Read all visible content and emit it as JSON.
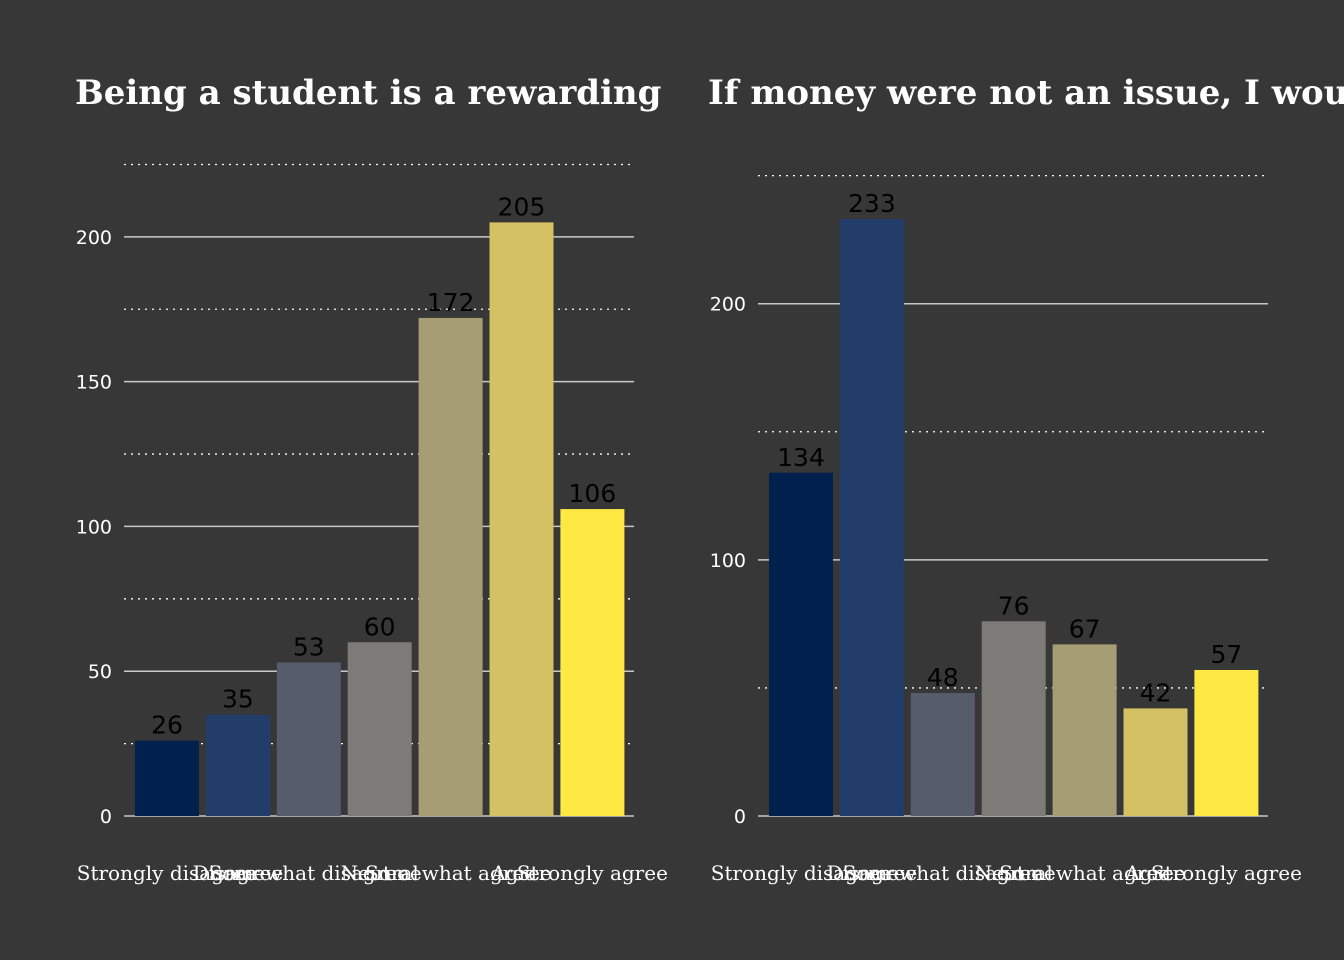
{
  "chart_data": [
    {
      "type": "bar",
      "title": "Being a student is a rewarding",
      "categories": [
        "Strongly disagree",
        "Disagree",
        "Somewhat disagree",
        "Neutral",
        "Somewhat agree",
        "Agree",
        "Strongly agree"
      ],
      "values": [
        26,
        35,
        53,
        60,
        172,
        205,
        106
      ],
      "colors": [
        "#00204d",
        "#233d6b",
        "#575c6d",
        "#7c7b78",
        "#a69d75",
        "#d3c164",
        "#fee944"
      ],
      "yticks": [
        "0",
        "50",
        "100",
        "150",
        "200"
      ],
      "ylim": [
        0,
        230
      ],
      "xlabel": "",
      "ylabel": "",
      "grid": true
    },
    {
      "type": "bar",
      "title": "If money were not an issue, I wou",
      "categories": [
        "Strongly disagree",
        "Disagree",
        "Somewhat disagree",
        "Neutral",
        "Somewhat agree",
        "Agree",
        "Strongly agree"
      ],
      "values": [
        134,
        233,
        48,
        76,
        67,
        42,
        57
      ],
      "colors": [
        "#00204d",
        "#233d6b",
        "#575c6d",
        "#7c7b78",
        "#a69d75",
        "#d3c164",
        "#fee944"
      ],
      "yticks": [
        "0",
        "100",
        "200"
      ],
      "ylim": [
        0,
        260
      ],
      "xlabel": "",
      "ylabel": "",
      "grid": true
    }
  ]
}
